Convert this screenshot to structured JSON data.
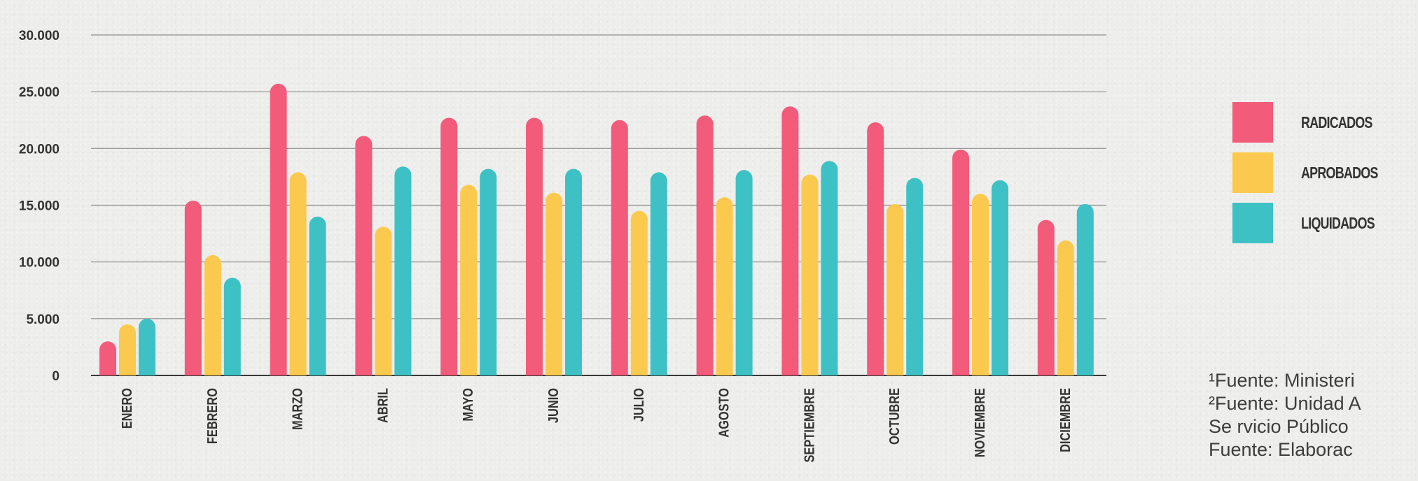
{
  "chart_data": {
    "type": "bar",
    "categories": [
      "ENERO",
      "FEBRERO",
      "MARZO",
      "ABRIL",
      "MAYO",
      "JUNIO",
      "JULIO",
      "AGOSTO",
      "SEPTIEMBRE",
      "OCTUBRE",
      "NOVIEMBRE",
      "DICIEMBRE"
    ],
    "series": [
      {
        "name": "RADICADOS",
        "color": "#f25b7a",
        "values": [
          3000,
          15400,
          25700,
          21100,
          22700,
          22700,
          22500,
          22900,
          23700,
          22300,
          19900,
          13700
        ]
      },
      {
        "name": "APROBADOS",
        "color": "#fcc94f",
        "values": [
          4500,
          10600,
          17900,
          13100,
          16800,
          16100,
          14500,
          15700,
          17700,
          15100,
          16000,
          11900
        ]
      },
      {
        "name": "LIQUIDADOS",
        "color": "#3ec1c5",
        "values": [
          5000,
          8600,
          14000,
          18400,
          18200,
          18200,
          17900,
          18100,
          18900,
          17400,
          17200,
          15100
        ]
      }
    ],
    "yticks": [
      0,
      5000,
      10000,
      15000,
      20000,
      25000,
      30000
    ],
    "ytick_labels": [
      "0",
      "5.000",
      "10.000",
      "15.000",
      "20.000",
      "25.000",
      "30.000"
    ],
    "ylim": [
      0,
      30000
    ],
    "title": "",
    "xlabel": "",
    "ylabel": "",
    "grid": true,
    "legend_position": "right"
  },
  "legend": {
    "items": [
      {
        "label": "RADICADOS",
        "color": "#f25b7a"
      },
      {
        "label": "APROBADOS",
        "color": "#fcc94f"
      },
      {
        "label": "LIQUIDADOS",
        "color": "#3ec1c5"
      }
    ]
  },
  "notes": {
    "line1": "¹Fuente: Ministeri",
    "line2": "²Fuente: Unidad A",
    "line3": " Se rvicio Público",
    "line4": " Fuente: Elaborac"
  }
}
